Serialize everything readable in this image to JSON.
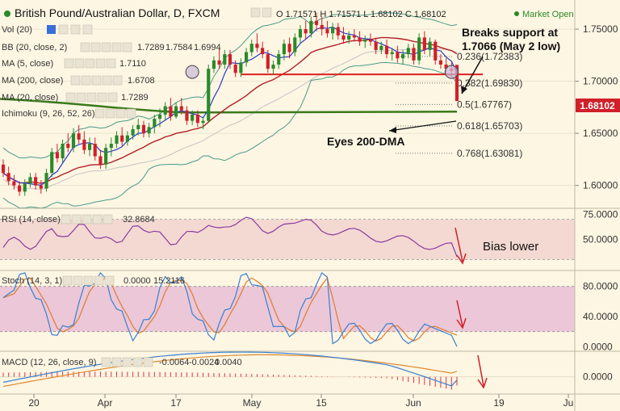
{
  "header": {
    "title": "British Pound/Australian Dollar, D, FXCM",
    "ohlc": "O 1.71571 H 1.71571 L 1.68102 C 1.68102",
    "market_status": "Market Open"
  },
  "indicators": {
    "vol": "Vol (20)",
    "bb": {
      "label": "BB (20, close, 2)",
      "v1": "1.7289",
      "v2": "1.7584",
      "v3": "1.6994"
    },
    "ma5": {
      "label": "MA (5, close)",
      "value": "1.7110"
    },
    "ma200": {
      "label": "MA (200, close)",
      "value": "1.6708"
    },
    "ma20": {
      "label": "MA (20, close)",
      "value": "1.7289"
    },
    "ichimoku": "Ichimoku (9, 26, 52, 26)",
    "rsi": {
      "label": "RSI (14, close)",
      "value": "32.8684"
    },
    "stoch": {
      "label": "Stoch (14, 3, 1)",
      "v1": "0.0000",
      "v2": "15.2116"
    },
    "macd": {
      "label": "MACD (12, 26, close, 9)",
      "v1": "-0.0064",
      "v2": "-0.0024",
      "v3": "0.0040"
    }
  },
  "annotations": {
    "breaks_line1": "Breaks support at",
    "breaks_line2": "1.7066 (May 2 low)",
    "eyes": "Eyes 200-DMA",
    "bias": "Bias lower"
  },
  "price_badge": "1.68102",
  "colors": {
    "background": "#fdf6e3",
    "bull": "#2a8a2a",
    "bear": "#d0202a",
    "bb": "#4a9a8a",
    "ma5": "#2a3ac8",
    "ma20": "#b02028",
    "ma200": "#3a7a1a",
    "support": "#e02020",
    "rsi_line": "#8a3aa0",
    "stoch_k": "#3a80d0",
    "stoch_d": "#e07a30",
    "macd_line": "#3a80d0",
    "macd_signal": "#e08a30",
    "macd_hist": "#e03040"
  },
  "chart_data": [
    {
      "type": "candlestick",
      "title": "British Pound/Australian Dollar, D, FXCM",
      "y_ticks": [
        "1.75000",
        "1.70000",
        "1.65000",
        "1.60000"
      ],
      "ylim": [
        1.578,
        1.778
      ],
      "x_ticks": [
        "20",
        "Apr",
        "17",
        "May",
        "15",
        "Jun",
        "19",
        "Ju"
      ],
      "support_level": 1.7066,
      "ma200_level": 1.6708,
      "fibonacci": [
        {
          "ratio": "0.236",
          "level": "1.72383",
          "label": "0.236(1.72383)"
        },
        {
          "ratio": "0.382",
          "level": "1.69830",
          "label": "0.382(1.69830)"
        },
        {
          "ratio": "0.5",
          "level": "1.67767",
          "label": "0.5(1.67767)"
        },
        {
          "ratio": "0.618",
          "level": "1.65703",
          "label": "0.618(1.65703)"
        },
        {
          "ratio": "0.768",
          "level": "1.63081",
          "label": "0.768(1.63081)"
        }
      ],
      "last_close": 1.68102,
      "candles": [
        [
          1.62,
          1.625,
          1.608,
          1.612
        ],
        [
          1.612,
          1.618,
          1.6,
          1.604
        ],
        [
          1.604,
          1.61,
          1.596,
          1.6
        ],
        [
          1.6,
          1.604,
          1.59,
          1.594
        ],
        [
          1.594,
          1.606,
          1.59,
          1.602
        ],
        [
          1.602,
          1.612,
          1.598,
          1.608
        ],
        [
          1.608,
          1.612,
          1.596,
          1.6
        ],
        [
          1.6,
          1.605,
          1.592,
          1.597
        ],
        [
          1.597,
          1.616,
          1.594,
          1.612
        ],
        [
          1.612,
          1.636,
          1.608,
          1.632
        ],
        [
          1.632,
          1.64,
          1.622,
          1.626
        ],
        [
          1.626,
          1.644,
          1.622,
          1.64
        ],
        [
          1.64,
          1.65,
          1.632,
          1.636
        ],
        [
          1.636,
          1.655,
          1.632,
          1.65
        ],
        [
          1.65,
          1.658,
          1.64,
          1.644
        ],
        [
          1.644,
          1.652,
          1.63,
          1.634
        ],
        [
          1.634,
          1.646,
          1.628,
          1.64
        ],
        [
          1.64,
          1.646,
          1.624,
          1.628
        ],
        [
          1.628,
          1.634,
          1.616,
          1.62
        ],
        [
          1.62,
          1.64,
          1.616,
          1.636
        ],
        [
          1.636,
          1.646,
          1.628,
          1.64
        ],
        [
          1.64,
          1.652,
          1.636,
          1.648
        ],
        [
          1.648,
          1.656,
          1.638,
          1.642
        ],
        [
          1.642,
          1.652,
          1.638,
          1.648
        ],
        [
          1.648,
          1.658,
          1.644,
          1.654
        ],
        [
          1.654,
          1.664,
          1.648,
          1.658
        ],
        [
          1.658,
          1.662,
          1.646,
          1.65
        ],
        [
          1.65,
          1.66,
          1.646,
          1.656
        ],
        [
          1.656,
          1.668,
          1.65,
          1.664
        ],
        [
          1.664,
          1.674,
          1.656,
          1.668
        ],
        [
          1.668,
          1.68,
          1.662,
          1.676
        ],
        [
          1.676,
          1.684,
          1.662,
          1.666
        ],
        [
          1.666,
          1.68,
          1.664,
          1.676
        ],
        [
          1.676,
          1.684,
          1.668,
          1.672
        ],
        [
          1.672,
          1.676,
          1.658,
          1.662
        ],
        [
          1.662,
          1.672,
          1.658,
          1.668
        ],
        [
          1.668,
          1.672,
          1.656,
          1.66
        ],
        [
          1.66,
          1.666,
          1.654,
          1.662
        ],
        [
          1.662,
          1.716,
          1.66,
          1.712
        ],
        [
          1.712,
          1.724,
          1.708,
          1.72
        ],
        [
          1.72,
          1.732,
          1.712,
          1.716
        ],
        [
          1.716,
          1.73,
          1.712,
          1.726
        ],
        [
          1.726,
          1.73,
          1.712,
          1.716
        ],
        [
          1.716,
          1.72,
          1.704,
          1.708
        ],
        [
          1.708,
          1.722,
          1.704,
          1.718
        ],
        [
          1.718,
          1.732,
          1.714,
          1.728
        ],
        [
          1.728,
          1.74,
          1.724,
          1.736
        ],
        [
          1.736,
          1.746,
          1.728,
          1.732
        ],
        [
          1.732,
          1.738,
          1.722,
          1.726
        ],
        [
          1.726,
          1.73,
          1.708,
          1.712
        ],
        [
          1.712,
          1.72,
          1.706,
          1.716
        ],
        [
          1.716,
          1.73,
          1.712,
          1.726
        ],
        [
          1.726,
          1.74,
          1.72,
          1.736
        ],
        [
          1.736,
          1.742,
          1.722,
          1.728
        ],
        [
          1.728,
          1.746,
          1.724,
          1.742
        ],
        [
          1.742,
          1.754,
          1.736,
          1.75
        ],
        [
          1.75,
          1.758,
          1.74,
          1.746
        ],
        [
          1.746,
          1.762,
          1.742,
          1.758
        ],
        [
          1.758,
          1.766,
          1.748,
          1.754
        ],
        [
          1.754,
          1.762,
          1.744,
          1.75
        ],
        [
          1.75,
          1.758,
          1.742,
          1.746
        ],
        [
          1.746,
          1.756,
          1.74,
          1.752
        ],
        [
          1.752,
          1.756,
          1.74,
          1.744
        ],
        [
          1.744,
          1.752,
          1.736,
          1.74
        ],
        [
          1.74,
          1.748,
          1.736,
          1.744
        ],
        [
          1.744,
          1.75,
          1.738,
          1.742
        ],
        [
          1.742,
          1.748,
          1.734,
          1.738
        ],
        [
          1.738,
          1.744,
          1.732,
          1.74
        ],
        [
          1.74,
          1.746,
          1.734,
          1.738
        ],
        [
          1.738,
          1.742,
          1.726,
          1.73
        ],
        [
          1.73,
          1.738,
          1.726,
          1.734
        ],
        [
          1.734,
          1.74,
          1.722,
          1.726
        ],
        [
          1.726,
          1.732,
          1.72,
          1.728
        ],
        [
          1.728,
          1.734,
          1.718,
          1.722
        ],
        [
          1.722,
          1.73,
          1.716,
          1.726
        ],
        [
          1.726,
          1.736,
          1.722,
          1.732
        ],
        [
          1.732,
          1.736,
          1.716,
          1.72
        ],
        [
          1.72,
          1.746,
          1.716,
          1.742
        ],
        [
          1.742,
          1.748,
          1.726,
          1.73
        ],
        [
          1.73,
          1.742,
          1.724,
          1.738
        ],
        [
          1.738,
          1.74,
          1.716,
          1.72
        ],
        [
          1.72,
          1.726,
          1.712,
          1.716
        ],
        [
          1.716,
          1.722,
          1.708,
          1.712
        ],
        [
          1.712,
          1.718,
          1.704,
          1.71
        ],
        [
          1.7157,
          1.7157,
          1.681,
          1.681
        ]
      ]
    },
    {
      "type": "line",
      "title": "RSI (14, close)",
      "y_ticks": [
        "75.0000",
        "50.0000"
      ],
      "ylim": [
        20,
        80
      ],
      "band": [
        30,
        70
      ],
      "last": 32.8684
    },
    {
      "type": "line",
      "title": "Stoch (14, 3, 1)",
      "y_ticks": [
        "80.0000",
        "40.0000",
        "0.0000"
      ],
      "ylim": [
        -5,
        100
      ],
      "band": [
        20,
        80
      ],
      "k_last": 0.0,
      "d_last": 15.2116
    },
    {
      "type": "bar",
      "title": "MACD (12, 26, close, 9)",
      "y_ticks": [
        "0.0000"
      ],
      "ylim": [
        -0.012,
        0.018
      ],
      "macd_last": -0.0024,
      "signal_last": 0.004,
      "hist_last": -0.0064
    }
  ]
}
